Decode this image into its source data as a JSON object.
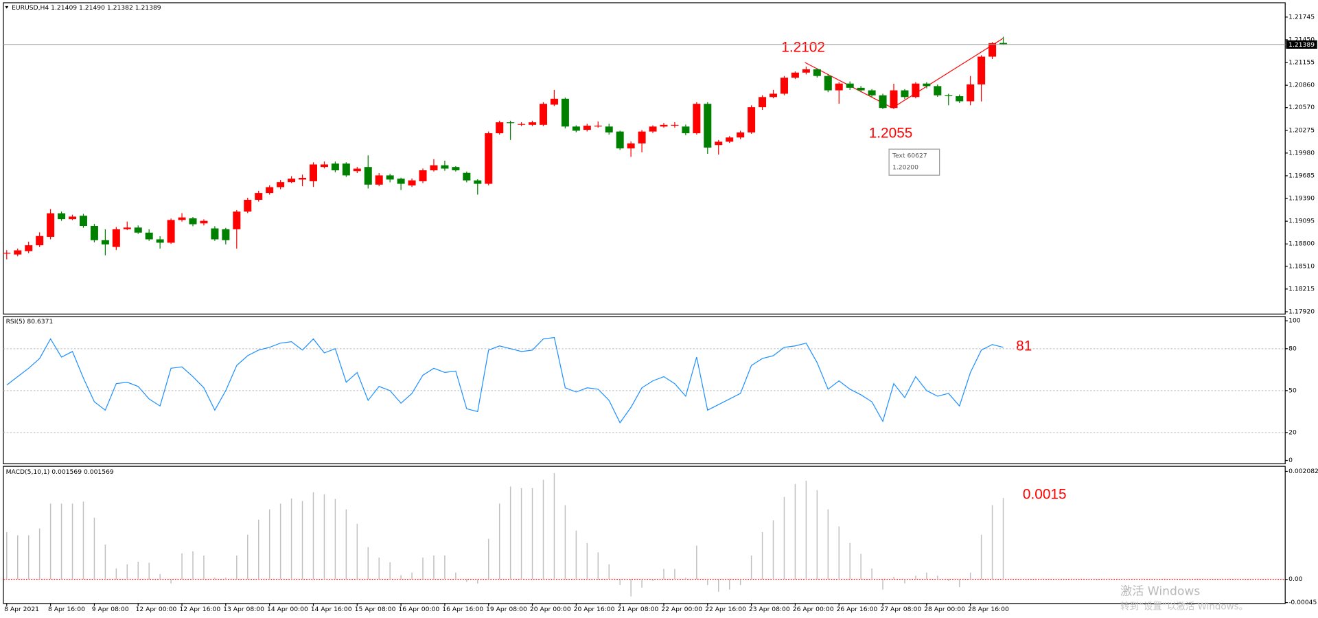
{
  "chart_data": [
    {
      "type": "candlestick",
      "title": "EURUSD,H4  1.21409 1.21490 1.21382 1.21389",
      "categories": [
        "8 Apr 2021",
        null,
        null,
        null,
        "8 Apr 16:00",
        null,
        null,
        null,
        "9 Apr 08:00",
        null,
        null,
        null,
        "12 Apr 00:00",
        null,
        null,
        null,
        "12 Apr 16:00",
        null,
        null,
        null,
        "13 Apr 08:00",
        null,
        null,
        null,
        "14 Apr 00:00",
        null,
        null,
        null,
        "14 Apr 16:00",
        null,
        null,
        null,
        "15 Apr 08:00",
        null,
        null,
        null,
        "16 Apr 00:00",
        null,
        null,
        null,
        "16 Apr 16:00",
        null,
        null,
        null,
        "19 Apr 08:00",
        null,
        null,
        null,
        "20 Apr 00:00",
        null,
        null,
        null,
        "20 Apr 16:00",
        null,
        null,
        null,
        "21 Apr 08:00",
        null,
        null,
        null,
        "22 Apr 00:00",
        null,
        null,
        null,
        "22 Apr 16:00",
        null,
        null,
        null,
        "23 Apr 08:00",
        null,
        null,
        null,
        "26 Apr 00:00",
        null,
        null,
        null,
        "26 Apr 16:00",
        null,
        null,
        null,
        "27 Apr 08:00",
        null,
        null,
        null,
        "28 Apr 00:00",
        null,
        null,
        null,
        "28 Apr 16:00",
        null,
        null,
        null
      ],
      "open": [
        1.18685,
        1.18663,
        1.18706,
        1.18783,
        1.18892,
        1.19198,
        1.19122,
        1.19166,
        1.19034,
        1.18849,
        1.18761,
        1.18991,
        1.19013,
        1.18947,
        1.1886,
        1.18816,
        1.19111,
        1.19133,
        1.19067,
        1.19002,
        1.18991,
        1.18991,
        1.1922,
        1.19373,
        1.19461,
        1.19537,
        1.19603,
        1.19636,
        1.19614,
        1.19799,
        1.19843,
        1.19843,
        1.19745,
        1.19799,
        1.1957,
        1.1969,
        1.19647,
        1.19559,
        1.19614,
        1.19756,
        1.19821,
        1.19799,
        1.19723,
        1.19625,
        1.19581,
        1.20237,
        1.20379,
        1.20357,
        1.20346,
        1.20346,
        1.20608,
        1.20685,
        1.20324,
        1.20281,
        1.20335,
        1.20324,
        1.20259,
        1.2004,
        1.20105,
        1.20259,
        1.20324,
        1.20346,
        1.20324,
        1.20237,
        1.20619,
        1.20084,
        1.20127,
        1.20182,
        1.20248,
        1.20575,
        1.20707,
        1.2075,
        1.20958,
        1.21024,
        1.21067,
        1.2098,
        1.20794,
        1.20882,
        1.20827,
        1.20794,
        1.20729,
        1.20565,
        1.20794,
        1.20707,
        1.20882,
        1.20849,
        1.20729,
        1.20718,
        1.20652,
        1.20871,
        1.21231,
        1.21409
      ],
      "high": [
        1.1872,
        1.1874,
        1.1883,
        1.1895,
        1.19253,
        1.1922,
        1.1918,
        1.1919,
        1.1906,
        1.1899,
        1.1902,
        1.1909,
        1.1904,
        1.1899,
        1.189,
        1.1913,
        1.192,
        1.1915,
        1.1912,
        1.1903,
        1.1901,
        1.1924,
        1.194,
        1.1949,
        1.1956,
        1.1963,
        1.1968,
        1.197,
        1.1986,
        1.1987,
        1.1987,
        1.1986,
        1.198,
        1.1995,
        1.1972,
        1.1971,
        1.1966,
        1.1965,
        1.1978,
        1.199,
        1.1988,
        1.1981,
        1.1974,
        1.1964,
        1.2026,
        1.204,
        1.204,
        1.2038,
        1.204,
        1.2064,
        1.208,
        1.207,
        1.2034,
        1.2036,
        1.2039,
        1.2036,
        1.2027,
        1.2013,
        1.2028,
        1.2034,
        1.2037,
        1.2038,
        1.2035,
        1.2064,
        1.2064,
        1.2015,
        1.202,
        1.2027,
        1.206,
        1.2073,
        1.208,
        1.2098,
        1.2104,
        1.21102,
        1.2108,
        1.21,
        1.209,
        1.2091,
        1.2085,
        1.2081,
        1.2075,
        1.2088,
        1.2081,
        1.209,
        1.209,
        1.2087,
        1.2075,
        1.2074,
        1.2098,
        1.2125,
        1.2142,
        1.2149
      ],
      "low": [
        1.186,
        1.1864,
        1.1868,
        1.1876,
        1.1886,
        1.191,
        1.1911,
        1.1901,
        1.1882,
        1.18652,
        1.1872,
        1.1898,
        1.1893,
        1.1884,
        1.1874,
        1.188,
        1.1909,
        1.1903,
        1.1904,
        1.1884,
        1.18794,
        1.1874,
        1.192,
        1.1935,
        1.1944,
        1.1951,
        1.1959,
        1.1955,
        1.1954,
        1.1978,
        1.1973,
        1.1967,
        1.1972,
        1.1952,
        1.1955,
        1.196,
        1.195,
        1.1954,
        1.1959,
        1.1974,
        1.1975,
        1.1974,
        1.196,
        1.1944,
        1.1956,
        1.2022,
        1.2015,
        1.2033,
        1.2033,
        1.2033,
        1.2059,
        1.203,
        1.2025,
        1.2026,
        1.2031,
        1.2022,
        1.2002,
        1.1993,
        1.1999,
        1.2024,
        1.2031,
        1.2031,
        1.2021,
        1.2022,
        1.1997,
        1.1996,
        1.2011,
        1.2016,
        1.2023,
        1.2054,
        1.2069,
        1.2073,
        1.2094,
        1.21,
        1.2096,
        1.2077,
        1.2062,
        1.208,
        1.2077,
        1.207,
        1.2055,
        1.2055,
        1.2068,
        1.2069,
        1.2082,
        1.2071,
        1.206,
        1.2063,
        1.206,
        1.2065,
        1.212,
        1.21382
      ],
      "close": [
        1.18685,
        1.18717,
        1.18783,
        1.18903,
        1.19198,
        1.19122,
        1.19155,
        1.19034,
        1.18849,
        1.18794,
        1.18991,
        1.19013,
        1.18947,
        1.1886,
        1.18816,
        1.19111,
        1.19144,
        1.19056,
        1.191,
        1.1886,
        1.18849,
        1.1922,
        1.19373,
        1.19461,
        1.19537,
        1.19603,
        1.19647,
        1.19658,
        1.19832,
        1.19832,
        1.19756,
        1.1969,
        1.19778,
        1.1957,
        1.1969,
        1.19636,
        1.19581,
        1.19625,
        1.19756,
        1.19821,
        1.19778,
        1.19756,
        1.19625,
        1.19581,
        1.20237,
        1.20379,
        1.20368,
        1.20357,
        1.20379,
        1.20619,
        1.20685,
        1.20324,
        1.2027,
        1.20335,
        1.20335,
        1.20248,
        1.2004,
        1.20105,
        1.20259,
        1.20324,
        1.20346,
        1.20346,
        1.20237,
        1.20619,
        1.20051,
        1.20127,
        1.20182,
        1.20248,
        1.20575,
        1.20707,
        1.2075,
        1.20958,
        1.21024,
        1.21067,
        1.2098,
        1.20794,
        1.20882,
        1.20827,
        1.20794,
        1.20729,
        1.20565,
        1.20794,
        1.20707,
        1.20882,
        1.20849,
        1.20729,
        1.20718,
        1.20652,
        1.20871,
        1.21231,
        1.21406,
        1.21389
      ],
      "up_color": "#ff0000",
      "down_color": "#008000",
      "ylim": [
        1.1789,
        1.2192
      ],
      "yticks": [
        1.21745,
        {
          "value": 1.2145,
          "label": "1.21450"
        },
        1.21155,
        {
          "value": 1.2086,
          "label": "1.20860"
        },
        {
          "value": 1.2057,
          "label": "1.20570"
        },
        1.20275,
        {
          "value": 1.1998,
          "label": "1.19980"
        },
        1.19685,
        {
          "value": 1.1939,
          "label": "1.19390"
        },
        1.19095,
        {
          "value": 1.188,
          "label": "1.18800"
        },
        {
          "value": 1.1851,
          "label": "1.18510"
        },
        1.18215,
        {
          "value": 1.1792,
          "label": "1.17920"
        }
      ],
      "annotations": [
        "1.2102",
        "1.2055"
      ],
      "tooltip": [
        "Text 60627",
        "1.20200"
      ]
    },
    {
      "type": "line",
      "title": "RSI(5) 80.6371",
      "color": "#1e90ff",
      "grid": true,
      "values": [
        54,
        60,
        66,
        73,
        87,
        74,
        78,
        59,
        42,
        36,
        55,
        56,
        53,
        44,
        39,
        66,
        67,
        60,
        52,
        36,
        50,
        68,
        75,
        79,
        81,
        84,
        85,
        79,
        87,
        77,
        80,
        56,
        63,
        43,
        53,
        50,
        41,
        48,
        61,
        66,
        63,
        64,
        37,
        35,
        79,
        82,
        80,
        78,
        79,
        87,
        88,
        52,
        49,
        52,
        51,
        43,
        27,
        38,
        52,
        57,
        60,
        55,
        46,
        74,
        36,
        40,
        44,
        48,
        68,
        73,
        75,
        81,
        82,
        84,
        70,
        51,
        57,
        51,
        47,
        42,
        28,
        55,
        45,
        60,
        50,
        46,
        48,
        39,
        63,
        79,
        83,
        81
      ],
      "ylim": [
        0,
        100
      ],
      "yticks": [
        100,
        80,
        50,
        20,
        0
      ],
      "annotations": [
        "81"
      ]
    },
    {
      "type": "bar",
      "title": "MACD(5,10,1) 0.001569 0.001569",
      "color": "#c0c0c0",
      "baseline_color": "#ff0000",
      "values": [
        0.00091,
        0.00085,
        0.00085,
        0.00098,
        0.00146,
        0.00146,
        0.00146,
        0.0015,
        0.00119,
        0.00067,
        0.00021,
        0.00029,
        0.00034,
        0.00032,
        0.0001,
        -8e-05,
        0.0005,
        0.00054,
        0.00046,
        3e-05,
        3e-05,
        0.00046,
        0.00086,
        0.00115,
        0.00135,
        0.00146,
        0.00156,
        0.00151,
        0.00168,
        0.00164,
        0.00155,
        0.00135,
        0.00107,
        0.00062,
        0.00042,
        0.00033,
        8e-05,
        0.00013,
        0.00042,
        0.00046,
        0.00046,
        0.00013,
        -5e-05,
        -8e-05,
        0.00078,
        0.00146,
        0.00179,
        0.00176,
        0.00176,
        0.00192,
        0.00205,
        0.00143,
        0.00094,
        0.0007,
        0.00052,
        0.00029,
        -0.00011,
        -0.00033,
        -0.00016,
        -3e-05,
        0.0002,
        0.0002,
        3e-05,
        0.00065,
        -0.00011,
        -0.00024,
        -0.0002,
        -0.00011,
        0.00046,
        0.00091,
        0.00114,
        0.00159,
        0.00184,
        0.0019,
        0.00172,
        0.00135,
        0.00102,
        0.0007,
        0.00049,
        0.00021,
        -0.0002,
        5e-05,
        -8e-05,
        7e-05,
        0.00013,
        7e-05,
        -3e-05,
        -0.00015,
        0.00013,
        0.00086,
        0.00143,
        0.001569
      ],
      "ylim": [
        -0.00045,
        0.002082
      ],
      "yticks": [
        0.002082,
        {
          "value": 0,
          "label": "0.00"
        },
        -0.00045
      ],
      "annotations": [
        "0.0015"
      ]
    }
  ],
  "watermark": {
    "title": "激活 Windows",
    "subtitle": "转到“设置”以激活 Windows。"
  }
}
